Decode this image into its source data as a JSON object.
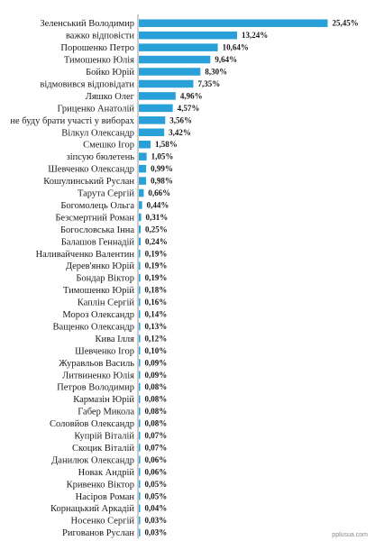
{
  "chart_data": {
    "type": "bar",
    "orientation": "horizontal",
    "bar_color": "#2aa0d8",
    "value_suffix": "%",
    "decimal_separator": ",",
    "grid": false,
    "legend": "none",
    "xlim": [
      0,
      26
    ],
    "categories": [
      "Зеленський Володимир",
      "важко відповісти",
      "Порошенко Петро",
      "Тимошенко Юлія",
      "Бойко Юрій",
      "відмовився відповідати",
      "Ляшко Олег",
      "Гриценко Анатолій",
      "не буду брати участі у виборах",
      "Вілкул Олександр",
      "Смешко Ігор",
      "зіпсую бюлетень",
      "Шевченко Олександр",
      "Кошулинський Руслан",
      "Тарута Сергій",
      "Богомолець Ольга",
      "Безсмертний Роман",
      "Богословська Інна",
      "Балашов Геннадій",
      "Наливайченко Валентин",
      "Дерев'янко Юрій",
      "Бондар Віктор",
      "Тимошенко Юрій",
      "Каплін Сергій",
      "Мороз Олександр",
      "Ващенко Олександр",
      "Кива Ілля",
      "Шевченко Ігор",
      "Журавльов Василь",
      "Литвиненко Юлія",
      "Петров Володимир",
      "Кармазін Юрій",
      "Габер Микола",
      "Соловйов Олександр",
      "Купрій Віталій",
      "Скоцик Віталій",
      "Данилюк Олександр",
      "Новак Андрій",
      "Кривенко Віктор",
      "Насіров Роман",
      "Корнацький Аркадій",
      "Носенко Сергій",
      "Ригованов Руслан"
    ],
    "values": [
      25.45,
      13.24,
      10.64,
      9.64,
      8.3,
      7.35,
      4.96,
      4.57,
      3.56,
      3.42,
      1.58,
      1.05,
      0.99,
      0.98,
      0.66,
      0.44,
      0.31,
      0.25,
      0.24,
      0.19,
      0.19,
      0.19,
      0.18,
      0.16,
      0.14,
      0.13,
      0.12,
      0.1,
      0.09,
      0.09,
      0.08,
      0.08,
      0.08,
      0.08,
      0.07,
      0.07,
      0.06,
      0.06,
      0.05,
      0.05,
      0.04,
      0.03,
      0.03
    ],
    "value_labels": [
      "25,45%",
      "13,24%",
      "10,64%",
      "9,64%",
      "8,30%",
      "7,35%",
      "4,96%",
      "4,57%",
      "3,56%",
      "3,42%",
      "1,58%",
      "1,05%",
      "0,99%",
      "0,98%",
      "0,66%",
      "0,44%",
      "0,31%",
      "0,25%",
      "0,24%",
      "0,19%",
      "0,19%",
      "0,19%",
      "0,18%",
      "0,16%",
      "0,14%",
      "0,13%",
      "0,12%",
      "0,10%",
      "0,09%",
      "0,09%",
      "0,08%",
      "0,08%",
      "0,08%",
      "0,08%",
      "0,07%",
      "0,07%",
      "0,06%",
      "0,06%",
      "0,05%",
      "0,05%",
      "0,04%",
      "0,03%",
      "0,03%"
    ]
  },
  "watermark": "pplusua.com"
}
